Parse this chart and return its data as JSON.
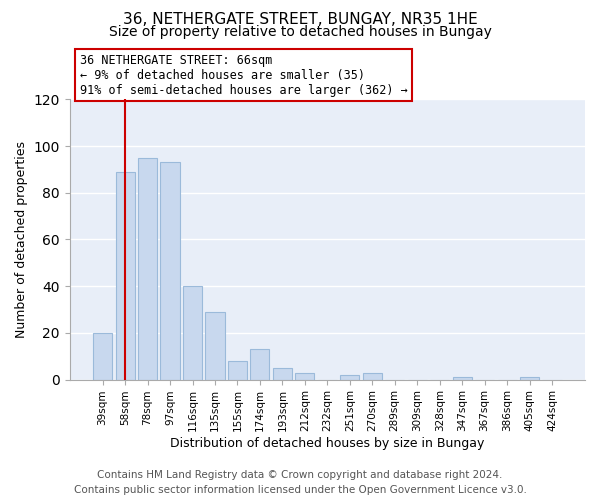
{
  "title": "36, NETHERGATE STREET, BUNGAY, NR35 1HE",
  "subtitle": "Size of property relative to detached houses in Bungay",
  "xlabel": "Distribution of detached houses by size in Bungay",
  "ylabel": "Number of detached properties",
  "bar_labels": [
    "39sqm",
    "58sqm",
    "78sqm",
    "97sqm",
    "116sqm",
    "135sqm",
    "155sqm",
    "174sqm",
    "193sqm",
    "212sqm",
    "232sqm",
    "251sqm",
    "270sqm",
    "289sqm",
    "309sqm",
    "328sqm",
    "347sqm",
    "367sqm",
    "386sqm",
    "405sqm",
    "424sqm"
  ],
  "bar_values": [
    20,
    89,
    95,
    93,
    40,
    29,
    8,
    13,
    5,
    3,
    0,
    2,
    3,
    0,
    0,
    0,
    1,
    0,
    0,
    1,
    0
  ],
  "bar_color": "#c8d8ee",
  "bar_edge_color": "#9bbada",
  "vline_x": 1.0,
  "vline_color": "#cc0000",
  "annotation_text": "36 NETHERGATE STREET: 66sqm\n← 9% of detached houses are smaller (35)\n91% of semi-detached houses are larger (362) →",
  "annotation_box_color": "#ffffff",
  "annotation_box_edge": "#cc0000",
  "ylim": [
    0,
    120
  ],
  "yticks": [
    0,
    20,
    40,
    60,
    80,
    100,
    120
  ],
  "footer_line1": "Contains HM Land Registry data © Crown copyright and database right 2024.",
  "footer_line2": "Contains public sector information licensed under the Open Government Licence v3.0.",
  "bg_color": "#ffffff",
  "plot_bg_color": "#e8eef8",
  "title_fontsize": 11,
  "subtitle_fontsize": 10,
  "axis_label_fontsize": 9,
  "tick_fontsize": 7.5,
  "footer_fontsize": 7.5,
  "annotation_fontsize": 8.5
}
